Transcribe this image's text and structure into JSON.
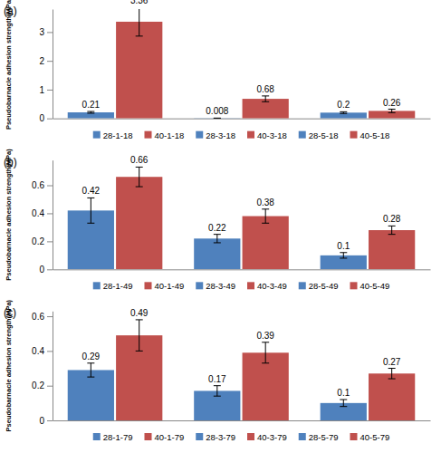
{
  "chart_data": [
    {
      "type": "bar",
      "title": "(a)",
      "y_label": "Pseudobarnacle adhesion strength(MPa)",
      "categories": [
        null,
        null,
        null
      ],
      "series": [
        {
          "name": "28-1-18",
          "color": "#4f81bd",
          "values": [
            0.21,
            null,
            null
          ],
          "errors": [
            0.03,
            null,
            null
          ]
        },
        {
          "name": "40-1-18",
          "color": "#c0504d",
          "values": [
            3.36,
            null,
            null
          ],
          "errors": [
            0.5,
            null,
            null
          ]
        },
        {
          "name": "28-3-18",
          "color": "#4f81bd",
          "values": [
            null,
            0.008,
            null
          ],
          "errors": [
            null,
            0.003,
            null
          ]
        },
        {
          "name": "40-3-18",
          "color": "#c0504d",
          "values": [
            null,
            0.68,
            null
          ],
          "errors": [
            null,
            0.1,
            null
          ]
        },
        {
          "name": "28-5-18",
          "color": "#4f81bd",
          "values": [
            null,
            null,
            0.2
          ],
          "errors": [
            null,
            null,
            0.03
          ]
        },
        {
          "name": "40-5-18",
          "color": "#c0504d",
          "values": [
            null,
            null,
            0.26
          ],
          "errors": [
            null,
            null,
            0.06
          ]
        }
      ],
      "ylim": [
        0,
        3.8
      ],
      "yticks": [
        0,
        1,
        2,
        3
      ],
      "grid": false,
      "legend": "bottom",
      "data_labels": true
    },
    {
      "type": "bar",
      "title": "(b)",
      "y_label": "Pseudobarnacle adhesion strength(MPa)",
      "categories": [
        null,
        null,
        null
      ],
      "series": [
        {
          "name": "28-1-49",
          "color": "#4f81bd",
          "values": [
            0.42,
            null,
            null
          ],
          "errors": [
            0.09,
            null,
            null
          ]
        },
        {
          "name": "40-1-49",
          "color": "#c0504d",
          "values": [
            0.66,
            null,
            null
          ],
          "errors": [
            0.07,
            null,
            null
          ]
        },
        {
          "name": "28-3-49",
          "color": "#4f81bd",
          "values": [
            null,
            0.22,
            null
          ],
          "errors": [
            null,
            0.03,
            null
          ]
        },
        {
          "name": "40-3-49",
          "color": "#c0504d",
          "values": [
            null,
            0.38,
            null
          ],
          "errors": [
            null,
            0.05,
            null
          ]
        },
        {
          "name": "28-5-49",
          "color": "#4f81bd",
          "values": [
            null,
            null,
            0.1
          ],
          "errors": [
            null,
            null,
            0.02
          ]
        },
        {
          "name": "40-5-49",
          "color": "#c0504d",
          "values": [
            null,
            null,
            0.28
          ],
          "errors": [
            null,
            null,
            0.03
          ]
        }
      ],
      "ylim": [
        0,
        0.78
      ],
      "yticks": [
        0,
        0.2,
        0.4,
        0.6
      ],
      "grid": false,
      "legend": "bottom",
      "data_labels": true
    },
    {
      "type": "bar",
      "title": "(c)",
      "y_label": "Pseudobarnacle adhesion strength(MPa)",
      "categories": [
        null,
        null,
        null
      ],
      "series": [
        {
          "name": "28-1-79",
          "color": "#4f81bd",
          "values": [
            0.29,
            null,
            null
          ],
          "errors": [
            0.04,
            null,
            null
          ]
        },
        {
          "name": "40-1-79",
          "color": "#c0504d",
          "values": [
            0.49,
            null,
            null
          ],
          "errors": [
            0.09,
            null,
            null
          ]
        },
        {
          "name": "28-3-79",
          "color": "#4f81bd",
          "values": [
            null,
            0.17,
            null
          ],
          "errors": [
            null,
            0.03,
            null
          ]
        },
        {
          "name": "40-3-79",
          "color": "#c0504d",
          "values": [
            null,
            0.39,
            null
          ],
          "errors": [
            null,
            0.06,
            null
          ]
        },
        {
          "name": "28-5-79",
          "color": "#4f81bd",
          "values": [
            null,
            null,
            0.1
          ],
          "errors": [
            null,
            null,
            0.02
          ]
        },
        {
          "name": "40-5-79",
          "color": "#c0504d",
          "values": [
            null,
            null,
            0.27
          ],
          "errors": [
            null,
            null,
            0.03
          ]
        }
      ],
      "ylim": [
        0,
        0.63
      ],
      "yticks": [
        0,
        0.2,
        0.4,
        0.6
      ],
      "grid": false,
      "legend": "bottom",
      "data_labels": true
    }
  ]
}
